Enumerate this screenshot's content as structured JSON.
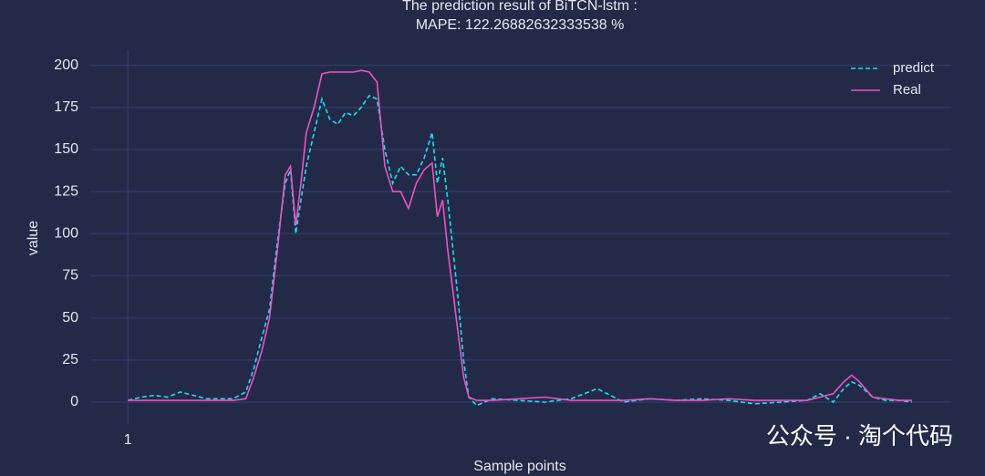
{
  "chart_data": {
    "type": "line",
    "title": "The prediction result of BiTCN-lstm :",
    "subtitle": "MAPE: 122.26882632333538 %",
    "x_label": "Sample points",
    "y_label": "value",
    "watermark": "公众号 · 淘个代码",
    "x": [
      1,
      6,
      11,
      16,
      21,
      26,
      31,
      36,
      41,
      46,
      49,
      52,
      55,
      58,
      61,
      63,
      65,
      67,
      69,
      72,
      75,
      78,
      81,
      84,
      87,
      90,
      93,
      96,
      99,
      102,
      105,
      108,
      111,
      114,
      117,
      119,
      121,
      123,
      125,
      127,
      129,
      131,
      134,
      140,
      150,
      160,
      170,
      180,
      190,
      200,
      210,
      220,
      230,
      240,
      250,
      260,
      265,
      270,
      274,
      277,
      280,
      285,
      290,
      295,
      300
    ],
    "series": [
      {
        "name": "predict",
        "color": "#19e0f0",
        "dash": true,
        "values": [
          1,
          3,
          4,
          3,
          6,
          4,
          2,
          2,
          2,
          6,
          20,
          38,
          55,
          95,
          130,
          138,
          100,
          120,
          140,
          160,
          180,
          168,
          165,
          172,
          170,
          175,
          182,
          180,
          150,
          130,
          140,
          135,
          135,
          145,
          160,
          130,
          145,
          120,
          90,
          60,
          25,
          3,
          -2,
          2,
          1,
          0,
          2,
          8,
          0,
          2,
          1,
          2,
          1,
          -1,
          0,
          1,
          5,
          0,
          8,
          12,
          10,
          3,
          1,
          1,
          0
        ]
      },
      {
        "name": "Real",
        "color": "#f24fc3",
        "dash": false,
        "values": [
          1,
          1,
          1,
          1,
          1,
          1,
          1,
          1,
          1,
          2,
          15,
          30,
          50,
          90,
          135,
          140,
          105,
          130,
          160,
          175,
          195,
          196,
          196,
          196,
          196,
          197,
          196,
          190,
          140,
          125,
          125,
          115,
          130,
          138,
          142,
          110,
          120,
          90,
          65,
          40,
          15,
          3,
          1,
          1,
          2,
          3,
          1,
          1,
          1,
          2,
          1,
          1,
          2,
          1,
          1,
          1,
          3,
          5,
          12,
          16,
          12,
          3,
          2,
          1,
          1
        ]
      }
    ],
    "xlim": [
      -13,
      315
    ],
    "xticks": [
      1
    ],
    "ylim": [
      -13,
      209
    ],
    "yticks": [
      0,
      25,
      50,
      75,
      100,
      125,
      150,
      175,
      200
    ],
    "grid": true,
    "legend": "top-right"
  }
}
